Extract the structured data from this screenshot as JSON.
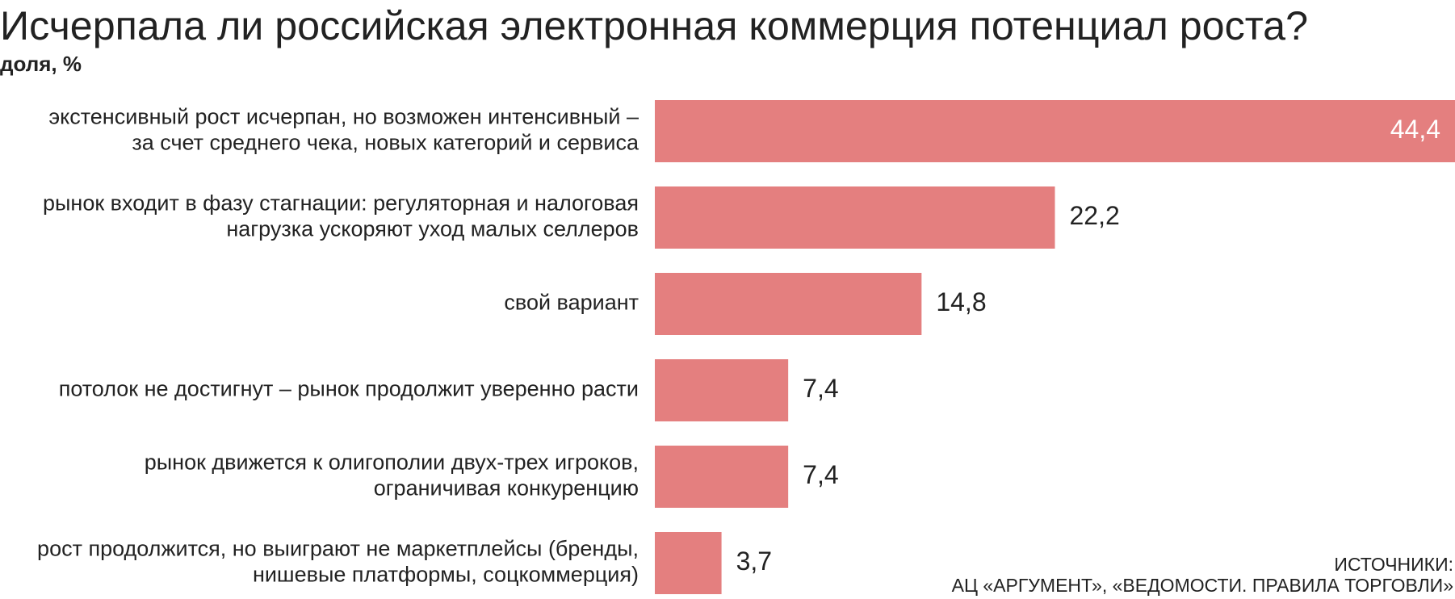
{
  "chart_data": {
    "type": "bar",
    "orientation": "horizontal",
    "title": "Исчерпала ли российская электронная коммерция потенциал роста?",
    "subtitle": "доля, %",
    "categories": [
      [
        "экстенсивный рост исчерпан, но возможен интенсивный –",
        "за счет среднего чека, новых категорий и сервиса"
      ],
      [
        "рынок входит в фазу стагнации: регуляторная и налоговая",
        "нагрузка ускоряют уход малых селлеров"
      ],
      [
        "свой вариант"
      ],
      [
        "потолок не достигнут – рынок продолжит уверенно расти"
      ],
      [
        "рынок движется к олигополии двух-трех игроков,",
        "ограничивая конкуренцию"
      ],
      [
        "рост продолжится, но выиграют не маркетплейсы (бренды,",
        "нишевые платформы, соцкоммерция)"
      ]
    ],
    "values": [
      44.4,
      22.2,
      14.8,
      7.4,
      7.4,
      3.7
    ],
    "value_labels": [
      "44,4",
      "22,2",
      "14,8",
      "7,4",
      "7,4",
      "3,7"
    ],
    "color": "#e47f7f",
    "xlim": [
      0,
      44.4
    ],
    "source": [
      "ИСТОЧНИКИ:",
      "АЦ «АРГУМЕНТ», «ВЕДОМОСТИ. ПРАВИЛА ТОРГОВЛИ»"
    ]
  }
}
